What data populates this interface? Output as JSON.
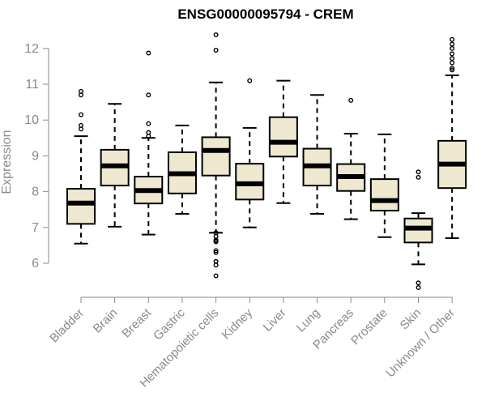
{
  "chart_data": {
    "type": "boxplot",
    "title": "ENSG00000095794 - CREM",
    "xlabel": "",
    "ylabel": "Expression",
    "ylim": [
      5.2,
      12.5
    ],
    "yticks": [
      6,
      7,
      8,
      9,
      10,
      11,
      12
    ],
    "box_color": "#efe8d0",
    "median_color": "#000000",
    "axis_color": "#8a8a8a",
    "categories": [
      "Bladder",
      "Brain",
      "Breast",
      "Gastric",
      "Hematopoietic cells",
      "Kidney",
      "Liver",
      "Lung",
      "Pancreas",
      "Prostate",
      "Skin",
      "Unknown / Other"
    ],
    "boxes": [
      {
        "min": 6.55,
        "q1": 7.1,
        "median": 7.68,
        "q3": 8.08,
        "max": 9.55,
        "outliers": [
          9.75,
          9.85,
          10.15,
          10.7,
          10.8
        ]
      },
      {
        "min": 7.02,
        "q1": 8.17,
        "median": 8.72,
        "q3": 9.17,
        "max": 10.45,
        "outliers": []
      },
      {
        "min": 6.8,
        "q1": 7.67,
        "median": 8.03,
        "q3": 8.42,
        "max": 9.5,
        "outliers": [
          9.55,
          9.65,
          9.9,
          10.7,
          11.87
        ]
      },
      {
        "min": 7.38,
        "q1": 7.95,
        "median": 8.5,
        "q3": 9.1,
        "max": 9.85,
        "outliers": []
      },
      {
        "min": 6.85,
        "q1": 8.45,
        "median": 9.15,
        "q3": 9.52,
        "max": 11.05,
        "outliers": [
          5.65,
          5.95,
          6.05,
          6.3,
          6.35,
          6.6,
          6.62,
          6.65,
          6.75,
          6.85,
          11.95,
          12.38
        ]
      },
      {
        "min": 7.0,
        "q1": 7.78,
        "median": 8.22,
        "q3": 8.78,
        "max": 9.78,
        "outliers": [
          11.1
        ]
      },
      {
        "min": 7.68,
        "q1": 8.98,
        "median": 9.38,
        "q3": 10.08,
        "max": 11.1,
        "outliers": []
      },
      {
        "min": 7.38,
        "q1": 8.17,
        "median": 8.72,
        "q3": 9.2,
        "max": 10.7,
        "outliers": []
      },
      {
        "min": 7.23,
        "q1": 8.02,
        "median": 8.42,
        "q3": 8.77,
        "max": 9.62,
        "outliers": [
          10.55
        ]
      },
      {
        "min": 6.73,
        "q1": 7.47,
        "median": 7.75,
        "q3": 8.35,
        "max": 9.6,
        "outliers": []
      },
      {
        "min": 5.97,
        "q1": 6.58,
        "median": 6.98,
        "q3": 7.25,
        "max": 7.4,
        "outliers": [
          5.32,
          5.45,
          8.4,
          8.55
        ]
      },
      {
        "min": 6.7,
        "q1": 8.1,
        "median": 8.77,
        "q3": 9.42,
        "max": 11.25,
        "outliers": [
          11.4,
          11.45,
          11.6,
          11.72,
          11.85,
          12.0,
          12.12,
          12.25
        ]
      }
    ]
  }
}
